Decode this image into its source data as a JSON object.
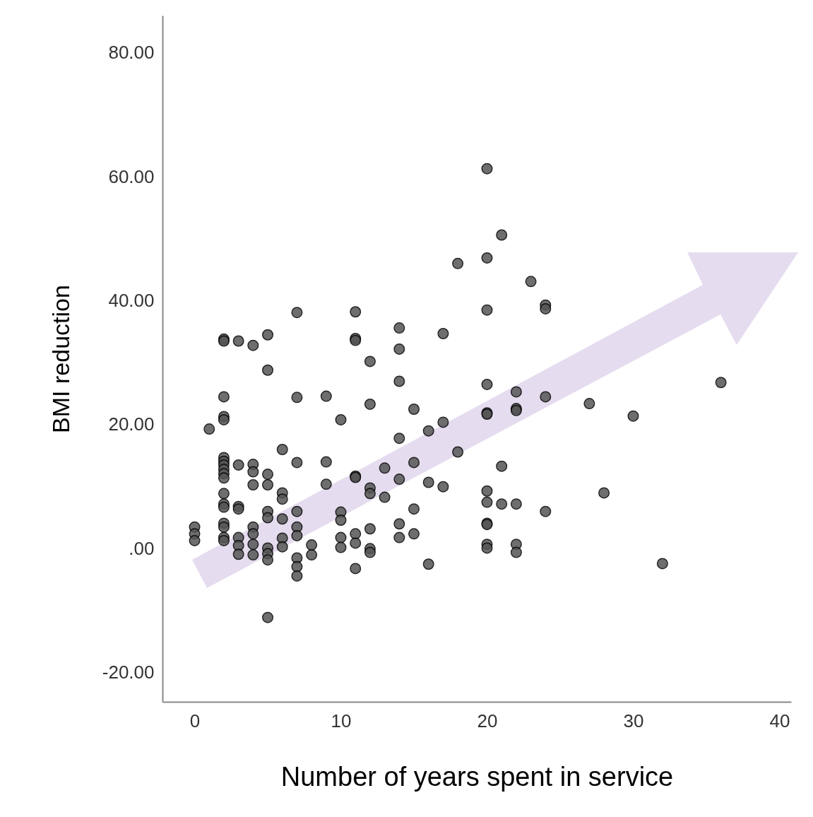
{
  "chart_data": {
    "type": "scatter",
    "xlabel": "Number of years spent in service",
    "ylabel": "BMI reduction",
    "x": [
      0,
      0,
      0,
      1,
      2,
      2,
      2,
      2,
      2,
      2,
      2,
      2,
      2,
      2,
      2,
      2,
      2,
      2,
      2,
      2,
      2,
      2,
      3,
      3,
      3,
      3,
      3,
      3,
      3,
      4,
      4,
      4,
      4,
      4,
      4,
      4,
      4,
      5,
      5,
      5,
      5,
      5,
      5,
      5,
      5,
      5,
      5,
      6,
      6,
      6,
      6,
      6,
      6,
      7,
      7,
      7,
      7,
      7,
      7,
      7,
      7,
      7,
      8,
      8,
      9,
      9,
      9,
      10,
      10,
      10,
      10,
      10,
      11,
      11,
      11,
      11,
      11,
      11,
      11,
      11,
      12,
      12,
      12,
      12,
      12,
      12,
      12,
      13,
      13,
      14,
      14,
      14,
      14,
      14,
      14,
      14,
      15,
      15,
      15,
      15,
      16,
      16,
      16,
      17,
      17,
      17,
      18,
      18,
      20,
      20,
      20,
      20,
      20,
      20,
      20,
      20,
      20,
      20,
      20,
      20,
      21,
      21,
      21,
      22,
      22,
      22,
      22,
      22,
      22,
      23,
      24,
      24,
      24,
      24,
      27,
      28,
      30,
      32,
      36
    ],
    "values": [
      3.5,
      2.4,
      1.3,
      19.3,
      33.8,
      33.5,
      24.5,
      21.3,
      20.8,
      14.7,
      14.1,
      13.5,
      12.8,
      12.1,
      11.4,
      8.9,
      7.2,
      6.7,
      4.1,
      3.5,
      1.8,
      1.3,
      33.5,
      13.5,
      6.8,
      6.4,
      1.8,
      0.5,
      -0.9,
      32.8,
      13.6,
      12.4,
      10.3,
      3.5,
      2.4,
      0.7,
      -1.0,
      34.5,
      28.8,
      12.0,
      10.3,
      6.0,
      5.0,
      0.1,
      -0.8,
      -1.8,
      -11.1,
      16.0,
      9.0,
      8.0,
      4.8,
      1.7,
      0.3,
      38.1,
      24.4,
      13.9,
      6.0,
      3.5,
      2.1,
      -1.5,
      -2.9,
      -4.4,
      0.6,
      -1.0,
      24.6,
      14.0,
      10.4,
      20.8,
      5.9,
      4.6,
      1.8,
      0.2,
      38.2,
      33.9,
      33.6,
      11.7,
      11.5,
      2.4,
      0.9,
      -3.2,
      30.2,
      23.3,
      9.8,
      8.9,
      3.2,
      0.0,
      -0.6,
      13.0,
      8.3,
      35.6,
      32.2,
      27.0,
      17.8,
      11.2,
      4.0,
      1.8,
      22.5,
      13.9,
      6.4,
      2.4,
      19.0,
      10.7,
      -2.5,
      34.7,
      20.4,
      10.0,
      46.0,
      15.6,
      61.3,
      46.9,
      38.5,
      26.5,
      21.9,
      21.7,
      9.3,
      7.5,
      4.1,
      3.9,
      0.7,
      0.1,
      50.6,
      13.3,
      7.2,
      25.3,
      22.6,
      22.3,
      7.2,
      0.7,
      -0.6,
      43.1,
      39.3,
      38.7,
      24.5,
      6.0,
      23.4,
      9.0,
      21.4,
      -2.4,
      26.8
    ],
    "color": "#555555",
    "marker": "circle",
    "grid": false,
    "xlim": [
      -2.2,
      40.8
    ],
    "xticks": [
      0,
      10,
      20,
      30,
      40
    ],
    "ylim": [
      -24.7,
      86
    ],
    "yticks": [
      {
        "value": -20,
        "label": "-20.00"
      },
      {
        "value": 0,
        "label": ".00"
      },
      {
        "value": 20,
        "label": "20.00"
      },
      {
        "value": 40,
        "label": "40.00"
      },
      {
        "value": 60,
        "label": "60.00"
      },
      {
        "value": 80,
        "label": "80.00"
      }
    ]
  }
}
